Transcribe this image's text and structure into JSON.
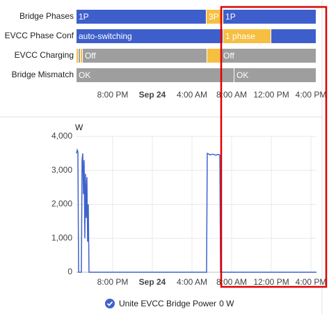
{
  "timeline": {
    "xlim": [
      -7.65,
      16.56
    ],
    "xticks": [
      {
        "value": -4,
        "label": "8:00 PM"
      },
      {
        "value": 0,
        "label": "Sep 24"
      },
      {
        "value": 4,
        "label": "4:00 AM"
      },
      {
        "value": 8,
        "label": "8:00 AM"
      },
      {
        "value": 12,
        "label": "12:00 PM"
      },
      {
        "value": 16,
        "label": "4:00 PM"
      }
    ],
    "rows": [
      {
        "label": "Bridge Phases",
        "segments": [
          {
            "start": -7.65,
            "end": 5.47,
            "label": "1P",
            "color": "#3e5fcb"
          },
          {
            "start": 5.47,
            "end": 7.16,
            "label": "3P",
            "color": "#f6bf42"
          },
          {
            "start": 7.16,
            "end": 16.56,
            "label": "1P",
            "color": "#3e5fcb"
          }
        ]
      },
      {
        "label": "EVCC Phase Conf",
        "segments": [
          {
            "start": -7.65,
            "end": 7.16,
            "label": "auto-switching",
            "color": "#3e5fcb"
          },
          {
            "start": 7.16,
            "end": 12.0,
            "label": "1 phase",
            "color": "#f6bf42"
          },
          {
            "start": 12.0,
            "end": 16.56,
            "color": "#3e5fcb"
          }
        ]
      },
      {
        "label": "EVCC Charging",
        "segments": [
          {
            "start": -7.65,
            "end": -7.44,
            "color": "#f6bf42"
          },
          {
            "start": -7.44,
            "end": -7.23,
            "color": "#9e9e9e"
          },
          {
            "start": -7.23,
            "end": -7.02,
            "color": "#f6bf42"
          },
          {
            "start": -7.02,
            "end": 5.54,
            "label": "Off",
            "color": "#9e9e9e"
          },
          {
            "start": 5.54,
            "end": 6.95,
            "color": "#f6bf42"
          },
          {
            "start": 6.95,
            "end": 16.56,
            "label": "Off",
            "color": "#9e9e9e"
          }
        ]
      },
      {
        "label": "Bridge Mismatch",
        "segments": [
          {
            "start": -7.65,
            "end": 8.28,
            "label": "OK",
            "color": "#9e9e9e"
          },
          {
            "start": 8.28,
            "end": 16.56,
            "label": "OK",
            "color": "#9e9e9e"
          }
        ]
      }
    ]
  },
  "chart_data": {
    "type": "line",
    "y_unit": "W",
    "x": [
      -7.65,
      -7.58,
      -7.51,
      -7.44,
      -7.16,
      -7.09,
      -7.02,
      -6.95,
      -6.88,
      -6.81,
      -6.74,
      -6.67,
      -6.6,
      -6.53,
      -6.46,
      -6.39,
      5.47,
      5.54,
      5.82,
      6.1,
      6.39,
      6.67,
      6.81,
      6.88,
      16.56
    ],
    "series": [
      {
        "name": "Unite EVCC Bridge Power",
        "color": "#3f63cc",
        "values": [
          3500,
          3600,
          3550,
          0,
          0,
          3300,
          3500,
          2300,
          3300,
          1000,
          2900,
          1600,
          2800,
          900,
          2000,
          0,
          0,
          3500,
          3460,
          3480,
          3450,
          3470,
          3450,
          0,
          0
        ]
      }
    ],
    "xlim": [
      -7.65,
      16.56
    ],
    "xticks": [
      {
        "value": -4,
        "label": "8:00 PM"
      },
      {
        "value": 0,
        "label": "Sep 24"
      },
      {
        "value": 4,
        "label": "4:00 AM"
      },
      {
        "value": 8,
        "label": "8:00 AM"
      },
      {
        "value": 12,
        "label": "12:00 PM"
      },
      {
        "value": 16,
        "label": "4:00 PM"
      }
    ],
    "ylim": [
      0,
      4000
    ],
    "yticks": [
      0,
      {
        "value": 1000,
        "label": "1,000"
      },
      {
        "value": 2000,
        "label": "2,000"
      },
      {
        "value": 3000,
        "label": "3,000"
      },
      {
        "value": 4000,
        "label": "4,000"
      }
    ],
    "grid": true,
    "legend_value": "0 W"
  }
}
